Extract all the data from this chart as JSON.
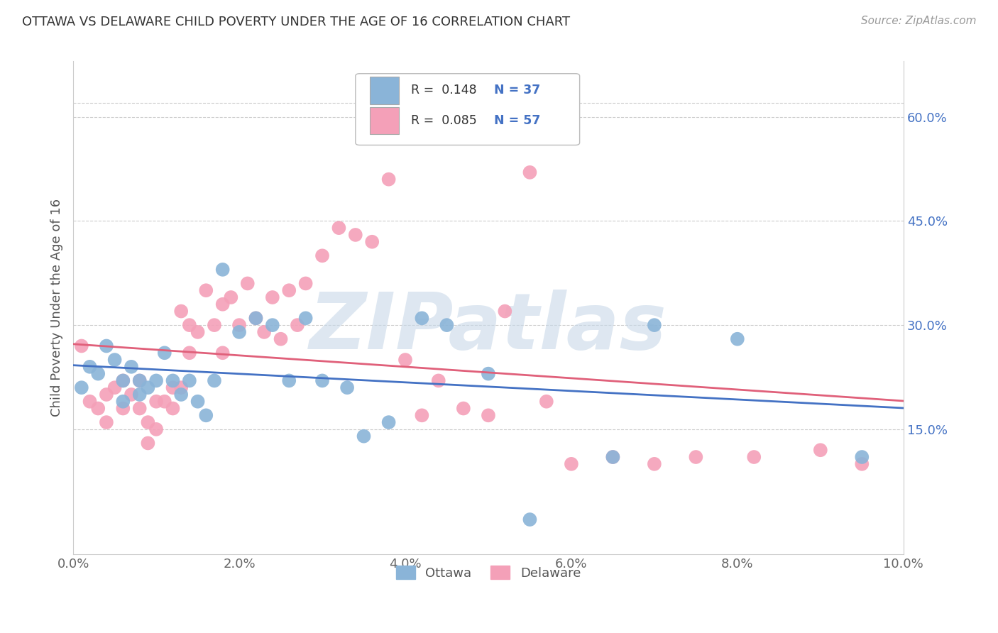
{
  "title": "OTTAWA VS DELAWARE CHILD POVERTY UNDER THE AGE OF 16 CORRELATION CHART",
  "source": "Source: ZipAtlas.com",
  "ylabel": "Child Poverty Under the Age of 16",
  "xlim": [
    0.0,
    0.1
  ],
  "ylim": [
    -0.03,
    0.68
  ],
  "xticks": [
    0.0,
    0.02,
    0.04,
    0.06,
    0.08,
    0.1
  ],
  "xticklabels": [
    "0.0%",
    "2.0%",
    "4.0%",
    "6.0%",
    "8.0%",
    "10.0%"
  ],
  "yticks_right": [
    0.15,
    0.3,
    0.45,
    0.6
  ],
  "yticklabels_right": [
    "15.0%",
    "30.0%",
    "45.0%",
    "60.0%"
  ],
  "grid_color": "#cccccc",
  "background_color": "#ffffff",
  "ottawa_color": "#8ab4d8",
  "delaware_color": "#f4a0b8",
  "ottawa_line_color": "#4472c4",
  "delaware_line_color": "#e0607a",
  "watermark": "ZIPatlas",
  "watermark_color": "#c8d8e8",
  "legend_r_ottawa": "R =  0.148",
  "legend_n_ottawa": "N = 37",
  "legend_r_delaware": "R =  0.085",
  "legend_n_delaware": "N = 57",
  "ottawa_x": [
    0.001,
    0.002,
    0.003,
    0.004,
    0.005,
    0.006,
    0.006,
    0.007,
    0.008,
    0.008,
    0.009,
    0.01,
    0.011,
    0.012,
    0.013,
    0.014,
    0.015,
    0.016,
    0.017,
    0.018,
    0.02,
    0.022,
    0.024,
    0.026,
    0.028,
    0.03,
    0.033,
    0.035,
    0.038,
    0.042,
    0.045,
    0.05,
    0.055,
    0.065,
    0.07,
    0.08,
    0.095
  ],
  "ottawa_y": [
    0.21,
    0.24,
    0.23,
    0.27,
    0.25,
    0.22,
    0.19,
    0.24,
    0.22,
    0.2,
    0.21,
    0.22,
    0.26,
    0.22,
    0.2,
    0.22,
    0.19,
    0.17,
    0.22,
    0.38,
    0.29,
    0.31,
    0.3,
    0.22,
    0.31,
    0.22,
    0.21,
    0.14,
    0.16,
    0.31,
    0.3,
    0.23,
    0.02,
    0.11,
    0.3,
    0.28,
    0.11
  ],
  "delaware_x": [
    0.001,
    0.002,
    0.003,
    0.004,
    0.004,
    0.005,
    0.006,
    0.006,
    0.007,
    0.008,
    0.008,
    0.009,
    0.009,
    0.01,
    0.01,
    0.011,
    0.012,
    0.012,
    0.013,
    0.013,
    0.014,
    0.014,
    0.015,
    0.016,
    0.017,
    0.018,
    0.018,
    0.019,
    0.02,
    0.021,
    0.022,
    0.023,
    0.024,
    0.025,
    0.026,
    0.027,
    0.028,
    0.03,
    0.032,
    0.034,
    0.036,
    0.038,
    0.04,
    0.042,
    0.044,
    0.047,
    0.05,
    0.052,
    0.055,
    0.057,
    0.06,
    0.065,
    0.07,
    0.075,
    0.082,
    0.09,
    0.095
  ],
  "delaware_y": [
    0.27,
    0.19,
    0.18,
    0.2,
    0.16,
    0.21,
    0.22,
    0.18,
    0.2,
    0.22,
    0.18,
    0.16,
    0.13,
    0.19,
    0.15,
    0.19,
    0.21,
    0.18,
    0.21,
    0.32,
    0.3,
    0.26,
    0.29,
    0.35,
    0.3,
    0.33,
    0.26,
    0.34,
    0.3,
    0.36,
    0.31,
    0.29,
    0.34,
    0.28,
    0.35,
    0.3,
    0.36,
    0.4,
    0.44,
    0.43,
    0.42,
    0.51,
    0.25,
    0.17,
    0.22,
    0.18,
    0.17,
    0.32,
    0.52,
    0.19,
    0.1,
    0.11,
    0.1,
    0.11,
    0.11,
    0.12,
    0.1
  ]
}
